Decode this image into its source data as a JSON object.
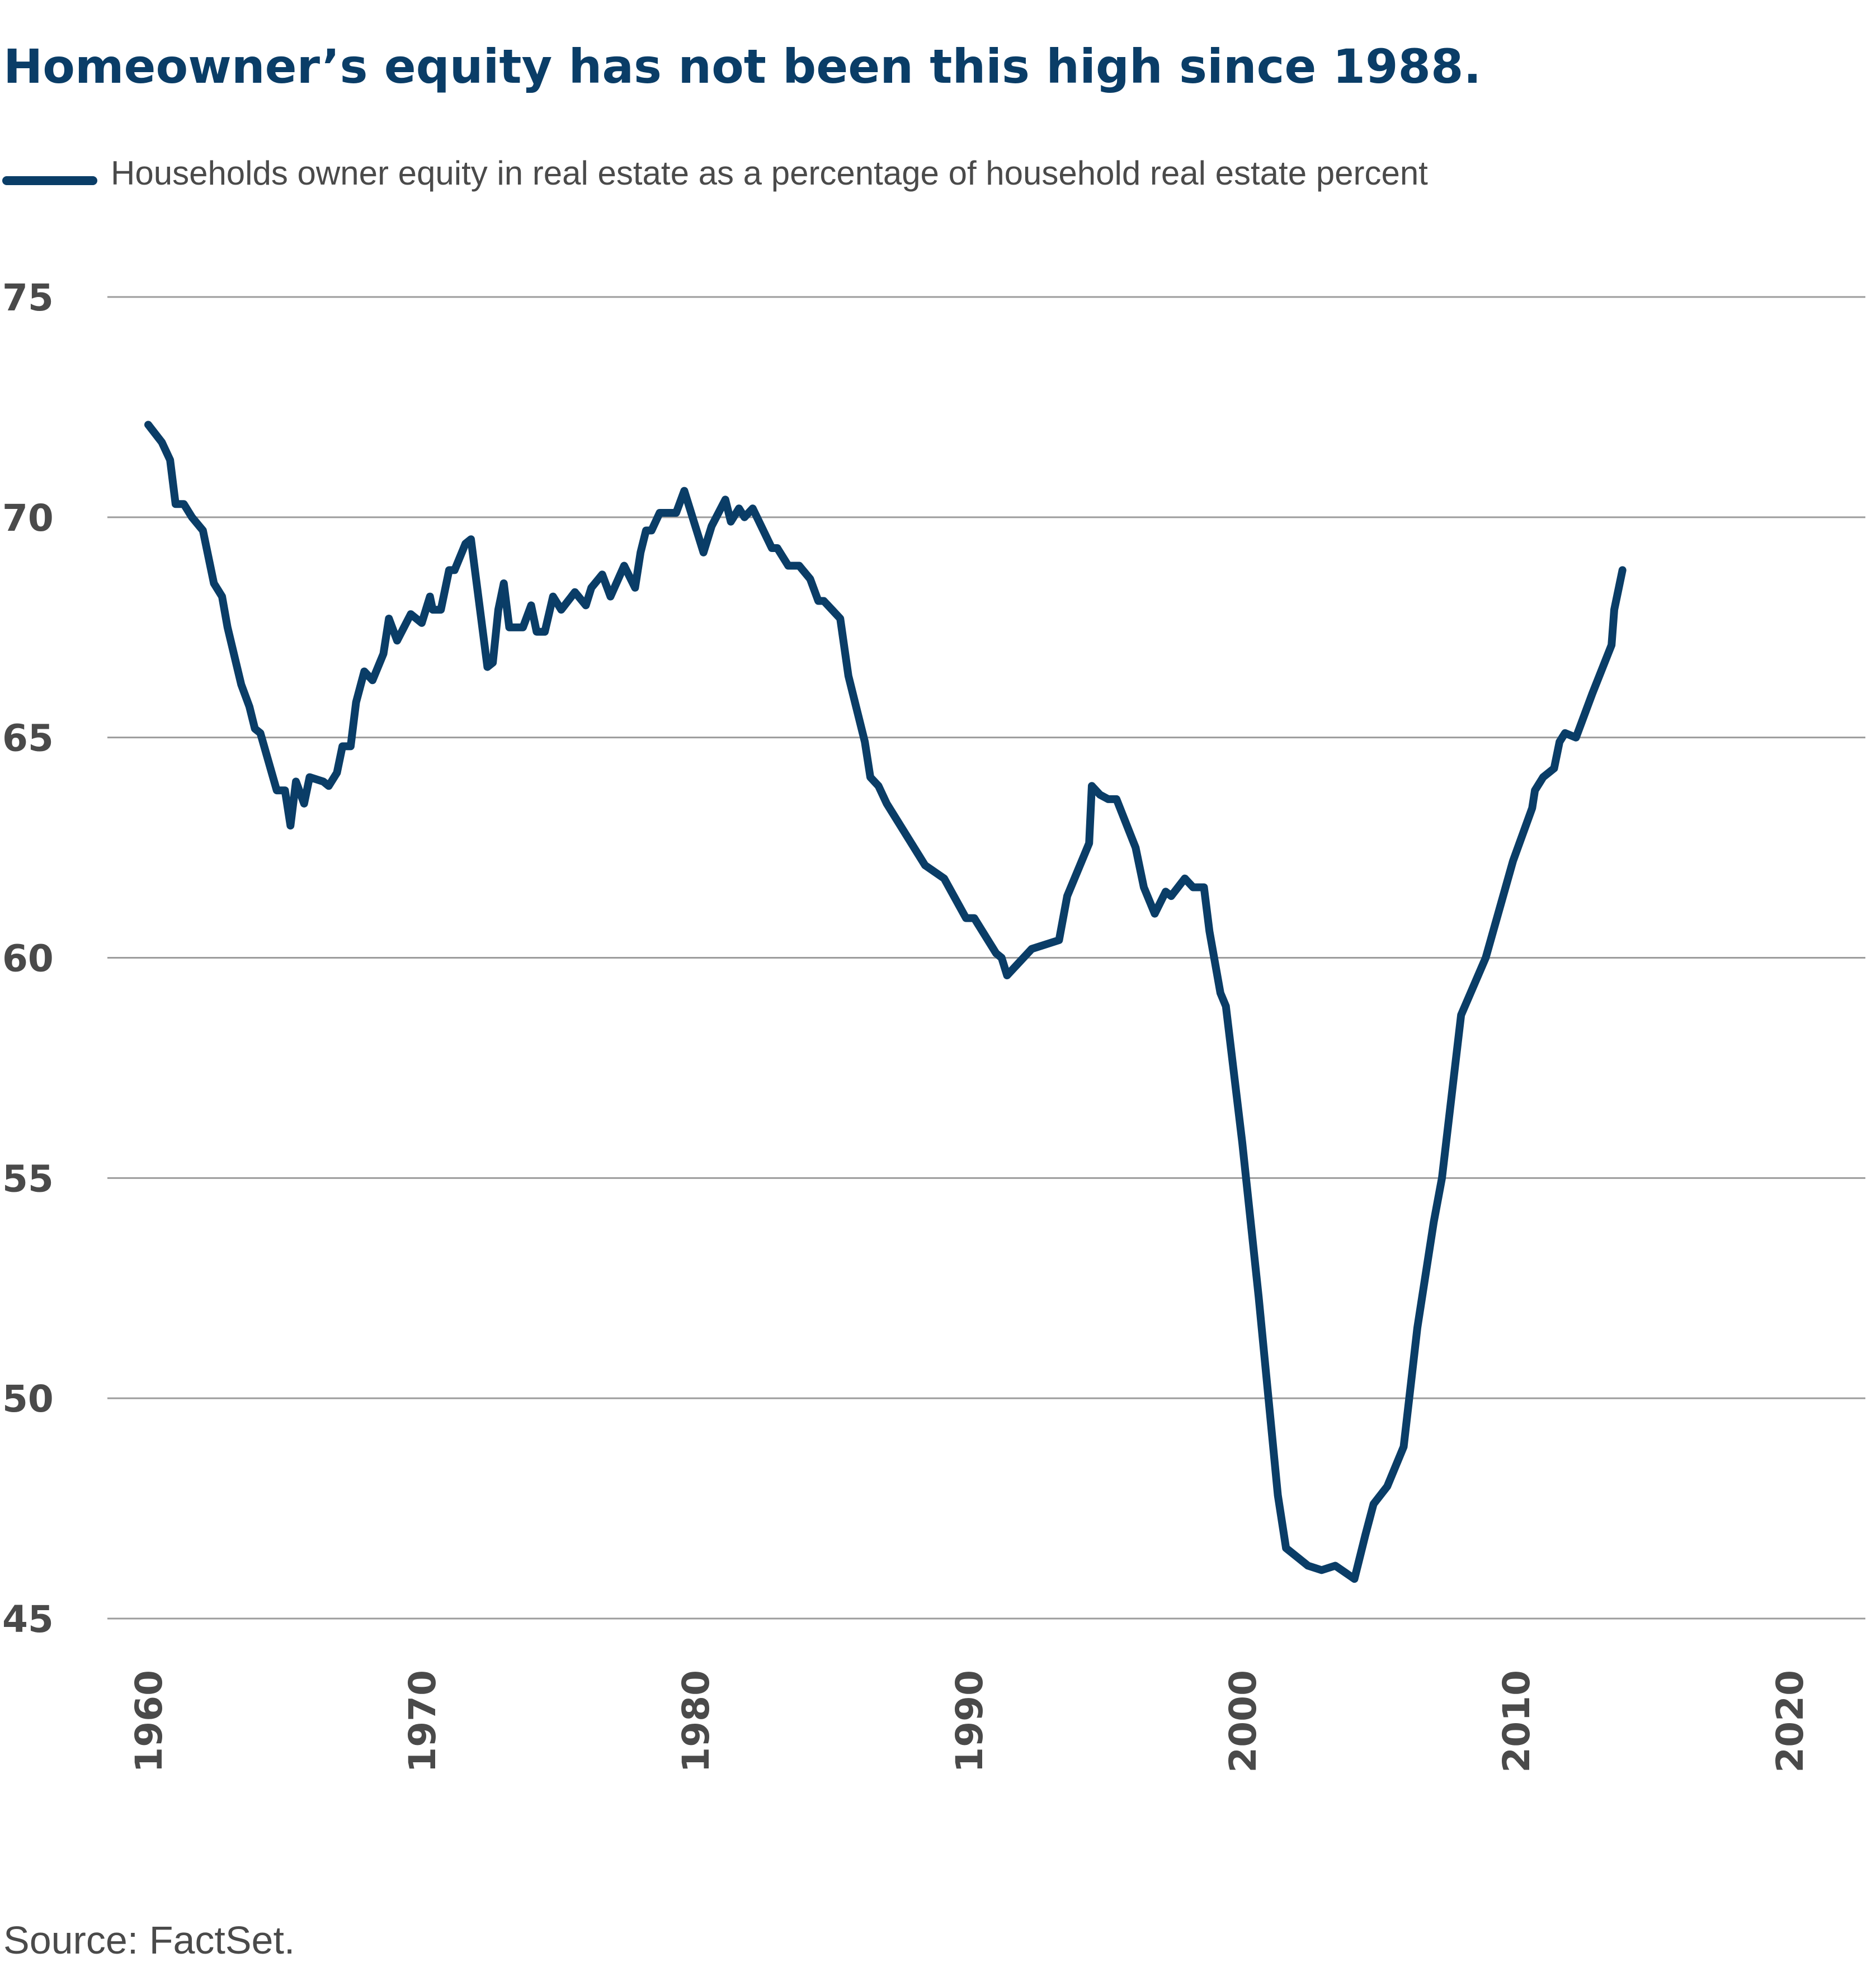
{
  "chart_data": {
    "type": "line",
    "title": "Homeowner’s equity has not been this high since 1988.",
    "legend": {
      "position": "top-left"
    },
    "series": [
      {
        "name": "Households owner equity in real estate as a percentage of household real estate percent",
        "color": "#0a3d67",
        "points": [
          [
            1960.0,
            72.1
          ],
          [
            1960.5,
            71.7
          ],
          [
            1960.8,
            71.3
          ],
          [
            1961.0,
            70.3
          ],
          [
            1961.3,
            70.3
          ],
          [
            1961.6,
            70.0
          ],
          [
            1962.0,
            69.7
          ],
          [
            1962.4,
            68.5
          ],
          [
            1962.7,
            68.2
          ],
          [
            1962.9,
            67.5
          ],
          [
            1963.4,
            66.2
          ],
          [
            1963.7,
            65.7
          ],
          [
            1963.9,
            65.2
          ],
          [
            1964.1,
            65.1
          ],
          [
            1964.7,
            63.8
          ],
          [
            1965.0,
            63.8
          ],
          [
            1965.2,
            63.0
          ],
          [
            1965.4,
            64.0
          ],
          [
            1965.7,
            63.5
          ],
          [
            1965.9,
            64.1
          ],
          [
            1966.4,
            64.0
          ],
          [
            1966.6,
            63.9
          ],
          [
            1966.9,
            64.2
          ],
          [
            1967.1,
            64.8
          ],
          [
            1967.4,
            64.8
          ],
          [
            1967.6,
            65.8
          ],
          [
            1967.9,
            66.5
          ],
          [
            1968.2,
            66.3
          ],
          [
            1968.6,
            66.9
          ],
          [
            1968.8,
            67.7
          ],
          [
            1969.1,
            67.2
          ],
          [
            1969.6,
            67.8
          ],
          [
            1970.0,
            67.6
          ],
          [
            1970.3,
            68.2
          ],
          [
            1970.4,
            67.9
          ],
          [
            1970.7,
            67.9
          ],
          [
            1971.0,
            68.8
          ],
          [
            1971.2,
            68.8
          ],
          [
            1971.6,
            69.4
          ],
          [
            1971.8,
            69.5
          ],
          [
            1972.4,
            66.6
          ],
          [
            1972.6,
            66.7
          ],
          [
            1972.8,
            67.9
          ],
          [
            1973.0,
            68.5
          ],
          [
            1973.2,
            67.5
          ],
          [
            1973.7,
            67.5
          ],
          [
            1974.0,
            68.0
          ],
          [
            1974.2,
            67.4
          ],
          [
            1974.5,
            67.4
          ],
          [
            1974.8,
            68.2
          ],
          [
            1975.1,
            67.9
          ],
          [
            1975.6,
            68.3
          ],
          [
            1976.0,
            68.0
          ],
          [
            1976.2,
            68.4
          ],
          [
            1976.6,
            68.7
          ],
          [
            1976.9,
            68.2
          ],
          [
            1977.4,
            68.9
          ],
          [
            1977.8,
            68.4
          ],
          [
            1978.0,
            69.2
          ],
          [
            1978.2,
            69.7
          ],
          [
            1978.4,
            69.7
          ],
          [
            1978.7,
            70.1
          ],
          [
            1979.3,
            70.1
          ],
          [
            1979.6,
            70.6
          ],
          [
            1980.3,
            69.2
          ],
          [
            1980.6,
            69.8
          ],
          [
            1981.1,
            70.4
          ],
          [
            1981.3,
            69.9
          ],
          [
            1981.6,
            70.2
          ],
          [
            1981.8,
            70.0
          ],
          [
            1982.1,
            70.2
          ],
          [
            1982.8,
            69.3
          ],
          [
            1983.0,
            69.3
          ],
          [
            1983.4,
            68.9
          ],
          [
            1983.8,
            68.9
          ],
          [
            1984.2,
            68.6
          ],
          [
            1984.5,
            68.1
          ],
          [
            1984.7,
            68.1
          ],
          [
            1985.0,
            67.9
          ],
          [
            1985.3,
            67.7
          ],
          [
            1985.6,
            66.4
          ],
          [
            1986.2,
            64.9
          ],
          [
            1986.4,
            64.1
          ],
          [
            1986.7,
            63.9
          ],
          [
            1987.0,
            63.5
          ],
          [
            1988.4,
            62.1
          ],
          [
            1989.1,
            61.8
          ],
          [
            1989.9,
            60.9
          ],
          [
            1990.2,
            60.9
          ],
          [
            1991.0,
            60.1
          ],
          [
            1991.2,
            60.0
          ],
          [
            1991.4,
            59.6
          ],
          [
            1992.3,
            60.2
          ],
          [
            1993.3,
            60.4
          ],
          [
            1993.6,
            61.4
          ],
          [
            1994.4,
            62.6
          ],
          [
            1994.5,
            63.9
          ],
          [
            1994.8,
            63.7
          ],
          [
            1995.1,
            63.6
          ],
          [
            1995.4,
            63.6
          ],
          [
            1996.1,
            62.5
          ],
          [
            1996.4,
            61.6
          ],
          [
            1996.8,
            61.0
          ],
          [
            1997.2,
            61.5
          ],
          [
            1997.4,
            61.4
          ],
          [
            1997.9,
            61.8
          ],
          [
            1998.2,
            61.6
          ],
          [
            1998.6,
            61.6
          ],
          [
            1998.8,
            60.6
          ],
          [
            1999.2,
            59.2
          ],
          [
            1999.4,
            58.9
          ],
          [
            2000.0,
            55.8
          ],
          [
            2000.6,
            52.3
          ],
          [
            2001.3,
            47.8
          ],
          [
            2001.6,
            46.6
          ],
          [
            2002.4,
            46.2
          ],
          [
            2002.9,
            46.1
          ],
          [
            2003.4,
            46.2
          ],
          [
            2004.1,
            45.9
          ],
          [
            2004.5,
            46.9
          ],
          [
            2004.8,
            47.6
          ],
          [
            2005.3,
            48.0
          ],
          [
            2005.9,
            48.9
          ],
          [
            2006.4,
            51.6
          ],
          [
            2007.0,
            54.0
          ],
          [
            2007.3,
            55.0
          ],
          [
            2008.0,
            58.7
          ],
          [
            2008.9,
            60.0
          ],
          [
            2009.9,
            62.2
          ],
          [
            2010.6,
            63.4
          ],
          [
            2010.7,
            63.8
          ],
          [
            2011.0,
            64.1
          ],
          [
            2011.4,
            64.3
          ],
          [
            2011.6,
            64.9
          ],
          [
            2011.8,
            65.1
          ],
          [
            2012.2,
            65.0
          ],
          [
            2012.8,
            66.0
          ],
          [
            2013.5,
            67.1
          ],
          [
            2013.6,
            67.9
          ],
          [
            2013.9,
            68.8
          ]
        ]
      }
    ],
    "x_ticks": [
      {
        "value": 1960,
        "label": "1960"
      },
      {
        "value": 1970,
        "label": "1970"
      },
      {
        "value": 1980,
        "label": "1980"
      },
      {
        "value": 1990,
        "label": "1990"
      },
      {
        "value": 2000,
        "label": "2000"
      },
      {
        "value": 2010,
        "label": "2010"
      },
      {
        "value": 2020,
        "label": "2020"
      }
    ],
    "y_ticks": [
      {
        "value": 75,
        "label": "75"
      },
      {
        "value": 70,
        "label": "70"
      },
      {
        "value": 65,
        "label": "65"
      },
      {
        "value": 60,
        "label": "60"
      },
      {
        "value": 55,
        "label": "55"
      },
      {
        "value": 50,
        "label": "50"
      },
      {
        "value": 45,
        "label": "45"
      }
    ],
    "ylim": [
      45,
      75
    ],
    "grid": "horizontal",
    "source": "Source: FactSet."
  }
}
